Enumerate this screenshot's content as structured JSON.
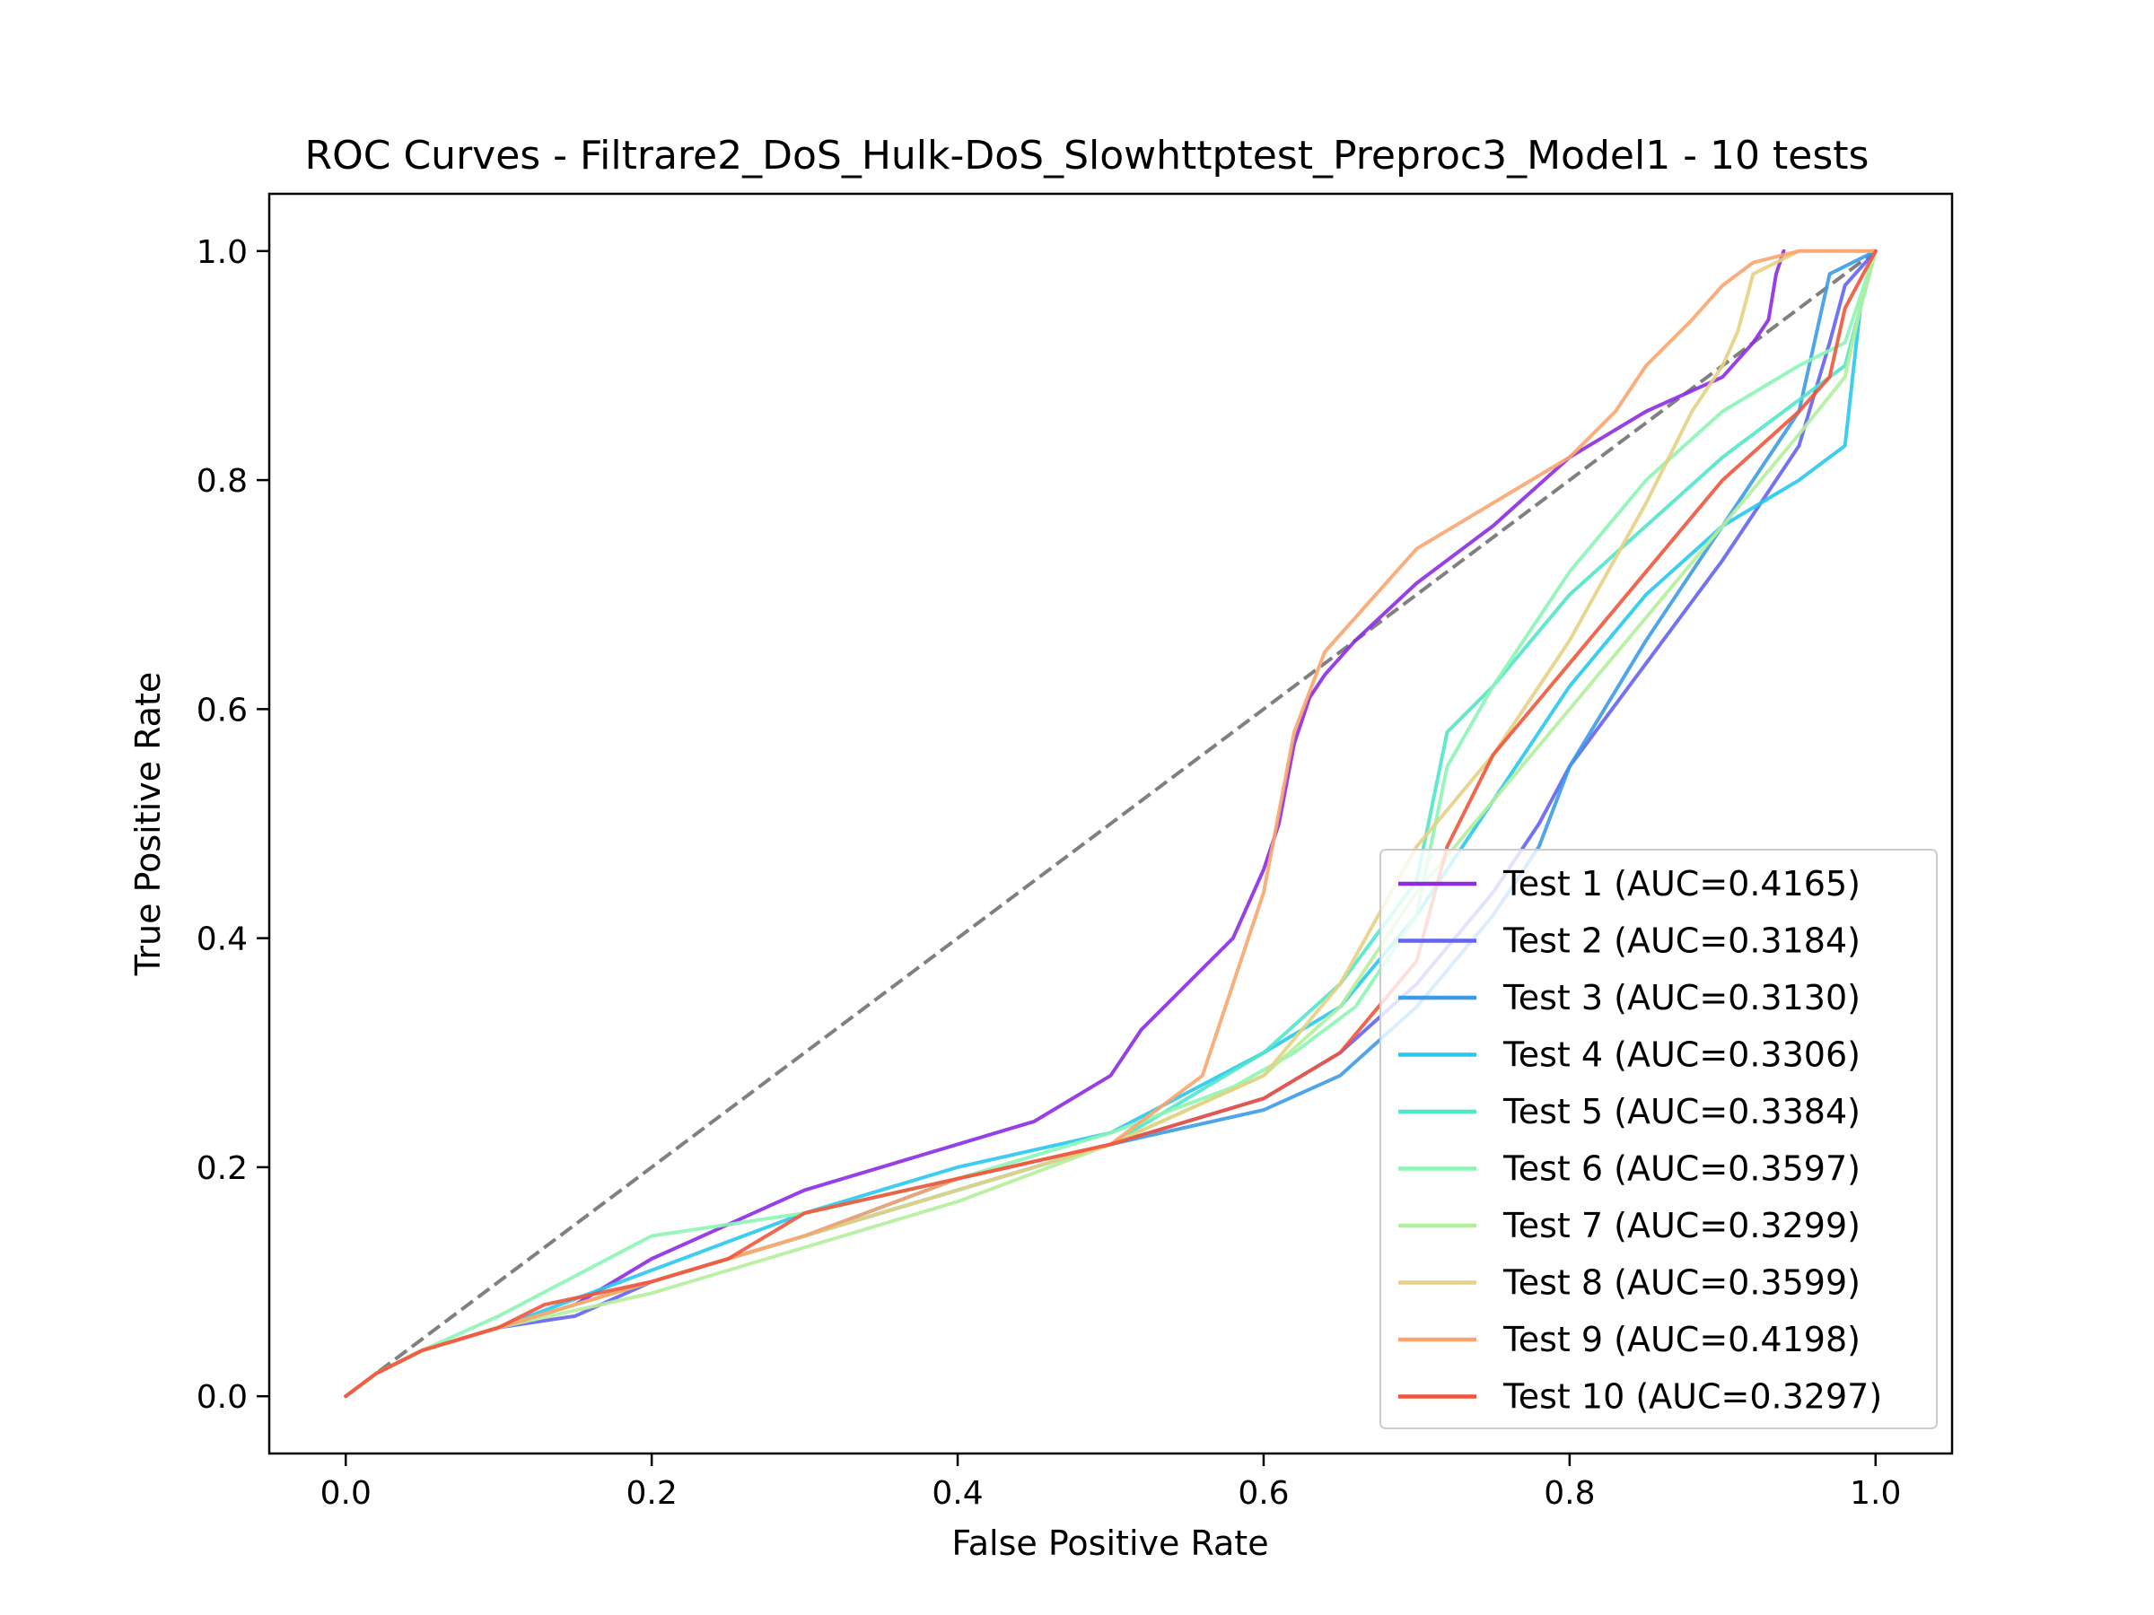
{
  "chart_data": {
    "type": "line",
    "title": "ROC Curves - Filtrare2_DoS_Hulk-DoS_Slowhttptest_Preproc3_Model1 - 10 tests",
    "xlabel": "False Positive Rate",
    "ylabel": "True Positive Rate",
    "xlim": [
      -0.05,
      1.05
    ],
    "ylim": [
      -0.05,
      1.05
    ],
    "xticks": [
      0.0,
      0.2,
      0.4,
      0.6,
      0.8,
      1.0
    ],
    "yticks": [
      0.0,
      0.2,
      0.4,
      0.6,
      0.8,
      1.0
    ],
    "xtick_labels": [
      "0.0",
      "0.2",
      "0.4",
      "0.6",
      "0.8",
      "1.0"
    ],
    "ytick_labels": [
      "0.0",
      "0.2",
      "0.4",
      "0.6",
      "0.8",
      "1.0"
    ],
    "grid": false,
    "legend_position": "lower-right",
    "diagonal": {
      "x": [
        0,
        1
      ],
      "y": [
        0,
        1
      ],
      "color": "#808080",
      "style": "dashed"
    },
    "series": [
      {
        "name": "Test 1 (AUC=0.4165)",
        "color": "#8b2be2",
        "x": [
          0,
          0.02,
          0.05,
          0.1,
          0.15,
          0.2,
          0.25,
          0.3,
          0.35,
          0.4,
          0.45,
          0.5,
          0.52,
          0.55,
          0.58,
          0.6,
          0.61,
          0.62,
          0.63,
          0.64,
          0.66,
          0.7,
          0.75,
          0.8,
          0.85,
          0.9,
          0.92,
          0.93,
          0.935,
          0.94
        ],
        "y": [
          0,
          0.02,
          0.04,
          0.06,
          0.08,
          0.12,
          0.15,
          0.18,
          0.2,
          0.22,
          0.24,
          0.28,
          0.32,
          0.36,
          0.4,
          0.46,
          0.5,
          0.57,
          0.61,
          0.63,
          0.66,
          0.71,
          0.76,
          0.82,
          0.86,
          0.89,
          0.92,
          0.94,
          0.98,
          1.0
        ]
      },
      {
        "name": "Test 2 (AUC=0.3184)",
        "color": "#6464f0",
        "x": [
          0,
          0.02,
          0.05,
          0.1,
          0.15,
          0.2,
          0.3,
          0.4,
          0.5,
          0.6,
          0.65,
          0.7,
          0.75,
          0.78,
          0.8,
          0.85,
          0.9,
          0.95,
          0.97,
          0.98,
          1.0
        ],
        "y": [
          0,
          0.02,
          0.04,
          0.06,
          0.07,
          0.1,
          0.14,
          0.18,
          0.22,
          0.26,
          0.3,
          0.36,
          0.44,
          0.5,
          0.55,
          0.64,
          0.73,
          0.83,
          0.92,
          0.97,
          1.0
        ]
      },
      {
        "name": "Test 3 (AUC=0.3130)",
        "color": "#3c9be6",
        "x": [
          0,
          0.02,
          0.05,
          0.1,
          0.2,
          0.3,
          0.4,
          0.5,
          0.6,
          0.65,
          0.7,
          0.75,
          0.78,
          0.8,
          0.85,
          0.9,
          0.95,
          0.97,
          1.0
        ],
        "y": [
          0,
          0.02,
          0.04,
          0.06,
          0.1,
          0.14,
          0.19,
          0.22,
          0.25,
          0.28,
          0.34,
          0.42,
          0.48,
          0.55,
          0.66,
          0.76,
          0.86,
          0.98,
          1.0
        ]
      },
      {
        "name": "Test 4 (AUC=0.3306)",
        "color": "#28c8f0",
        "x": [
          0,
          0.02,
          0.05,
          0.1,
          0.2,
          0.3,
          0.4,
          0.5,
          0.6,
          0.65,
          0.7,
          0.75,
          0.8,
          0.85,
          0.9,
          0.95,
          0.98,
          0.99,
          1.0
        ],
        "y": [
          0,
          0.02,
          0.04,
          0.06,
          0.11,
          0.16,
          0.2,
          0.23,
          0.3,
          0.34,
          0.42,
          0.52,
          0.62,
          0.7,
          0.76,
          0.8,
          0.83,
          0.95,
          1.0
        ]
      },
      {
        "name": "Test 5 (AUC=0.3384)",
        "color": "#50e6c8",
        "x": [
          0,
          0.02,
          0.05,
          0.1,
          0.2,
          0.3,
          0.4,
          0.5,
          0.6,
          0.65,
          0.7,
          0.72,
          0.75,
          0.8,
          0.85,
          0.9,
          0.95,
          0.98,
          1.0
        ],
        "y": [
          0,
          0.02,
          0.04,
          0.06,
          0.1,
          0.14,
          0.18,
          0.22,
          0.3,
          0.36,
          0.45,
          0.58,
          0.62,
          0.7,
          0.76,
          0.82,
          0.87,
          0.9,
          1.0
        ]
      },
      {
        "name": "Test 6 (AUC=0.3597)",
        "color": "#8cf5b4",
        "x": [
          0,
          0.02,
          0.05,
          0.1,
          0.2,
          0.3,
          0.4,
          0.5,
          0.58,
          0.62,
          0.66,
          0.7,
          0.72,
          0.75,
          0.8,
          0.85,
          0.9,
          0.95,
          0.98,
          1.0
        ],
        "y": [
          0,
          0.02,
          0.04,
          0.07,
          0.14,
          0.16,
          0.19,
          0.23,
          0.27,
          0.3,
          0.34,
          0.42,
          0.55,
          0.62,
          0.72,
          0.8,
          0.86,
          0.9,
          0.92,
          1.0
        ]
      },
      {
        "name": "Test 7 (AUC=0.3299)",
        "color": "#b4f09b",
        "x": [
          0,
          0.02,
          0.05,
          0.1,
          0.2,
          0.3,
          0.4,
          0.5,
          0.6,
          0.65,
          0.7,
          0.75,
          0.8,
          0.85,
          0.9,
          0.95,
          0.98,
          0.99,
          1.0
        ],
        "y": [
          0,
          0.02,
          0.04,
          0.06,
          0.09,
          0.13,
          0.17,
          0.22,
          0.28,
          0.34,
          0.44,
          0.52,
          0.6,
          0.68,
          0.76,
          0.84,
          0.89,
          0.95,
          1.0
        ]
      },
      {
        "name": "Test 8 (AUC=0.3599)",
        "color": "#e6d282",
        "x": [
          0,
          0.02,
          0.05,
          0.1,
          0.2,
          0.3,
          0.4,
          0.5,
          0.6,
          0.65,
          0.7,
          0.75,
          0.8,
          0.85,
          0.88,
          0.9,
          0.91,
          0.92,
          0.95,
          1.0
        ],
        "y": [
          0,
          0.02,
          0.04,
          0.06,
          0.1,
          0.14,
          0.18,
          0.22,
          0.28,
          0.36,
          0.48,
          0.56,
          0.66,
          0.78,
          0.86,
          0.9,
          0.93,
          0.98,
          1.0,
          1.0
        ]
      },
      {
        "name": "Test 9 (AUC=0.4198)",
        "color": "#faa56e",
        "x": [
          0,
          0.02,
          0.05,
          0.1,
          0.2,
          0.3,
          0.4,
          0.5,
          0.56,
          0.58,
          0.6,
          0.62,
          0.64,
          0.66,
          0.7,
          0.75,
          0.8,
          0.83,
          0.85,
          0.88,
          0.9,
          0.92,
          0.95,
          1.0
        ],
        "y": [
          0,
          0.02,
          0.04,
          0.06,
          0.1,
          0.14,
          0.19,
          0.22,
          0.28,
          0.36,
          0.44,
          0.58,
          0.65,
          0.68,
          0.74,
          0.78,
          0.82,
          0.86,
          0.9,
          0.94,
          0.97,
          0.99,
          1.0,
          1.0
        ]
      },
      {
        "name": "Test 10 (AUC=0.3297)",
        "color": "#f0553c",
        "x": [
          0,
          0.02,
          0.05,
          0.1,
          0.13,
          0.2,
          0.25,
          0.3,
          0.4,
          0.5,
          0.6,
          0.65,
          0.7,
          0.72,
          0.75,
          0.8,
          0.85,
          0.9,
          0.95,
          0.97,
          0.98,
          1.0
        ],
        "y": [
          0,
          0.02,
          0.04,
          0.06,
          0.08,
          0.1,
          0.12,
          0.16,
          0.19,
          0.22,
          0.26,
          0.3,
          0.38,
          0.48,
          0.56,
          0.64,
          0.72,
          0.8,
          0.86,
          0.89,
          0.95,
          1.0
        ]
      }
    ]
  }
}
